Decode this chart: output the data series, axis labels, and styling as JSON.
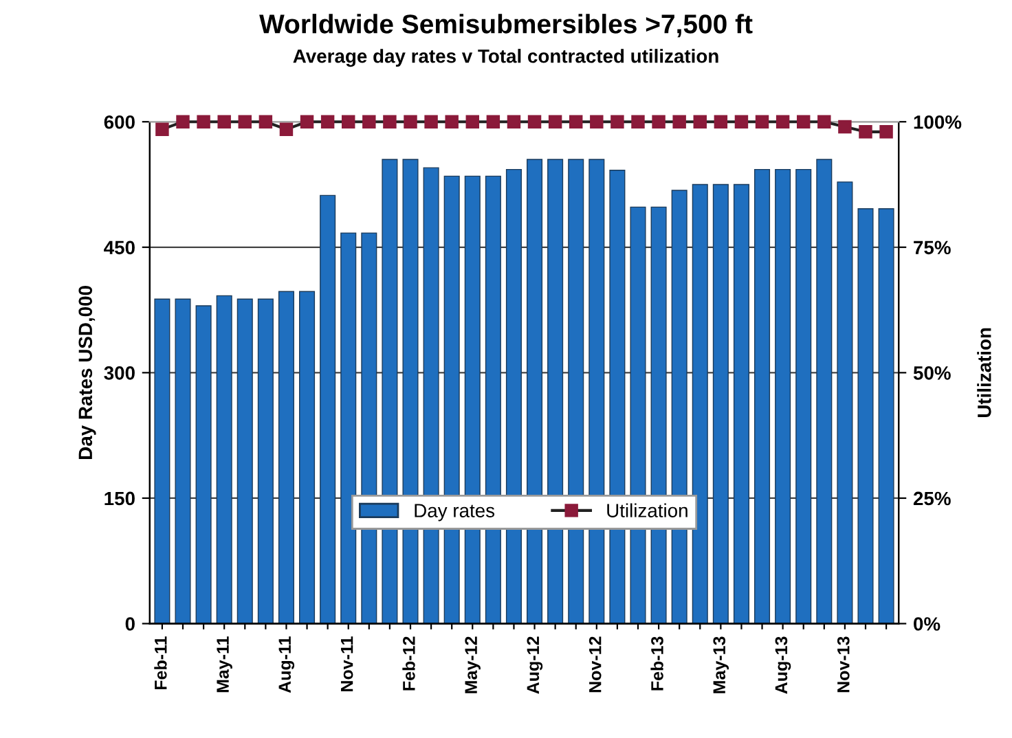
{
  "chart_data": {
    "type": "bar",
    "title": "Worldwide Semisubmersibles >7,500 ft",
    "subtitle": "Average day rates v Total contracted utilization",
    "ylabel": "Day Rates USD,000",
    "y2label": "Utilization",
    "categories": [
      "Feb-11",
      null,
      null,
      "May-11",
      null,
      null,
      "Aug-11",
      null,
      null,
      "Nov-11",
      null,
      null,
      "Feb-12",
      null,
      null,
      "May-12",
      null,
      null,
      "Aug-12",
      null,
      null,
      "Nov-12",
      null,
      null,
      "Feb-13",
      null,
      null,
      "May-13",
      null,
      null,
      "Aug-13",
      null,
      null,
      "Nov-13",
      null,
      null
    ],
    "series": [
      {
        "name": "Day rates",
        "color": "#1f6fbf",
        "values": [
          388,
          388,
          380,
          392,
          388,
          388,
          397,
          397,
          512,
          467,
          467,
          555,
          555,
          545,
          535,
          535,
          535,
          543,
          555,
          555,
          555,
          555,
          542,
          498,
          498,
          518,
          525,
          525,
          525,
          543,
          543,
          543,
          555,
          528,
          496,
          496
        ]
      },
      {
        "name": "Utilization",
        "type": "line",
        "axis": "y2",
        "color": "#8b1a3a",
        "marker": "square",
        "values": [
          98.5,
          100,
          100,
          100,
          100,
          100,
          98.5,
          100,
          100,
          100,
          100,
          100,
          100,
          100,
          100,
          100,
          100,
          100,
          100,
          100,
          100,
          100,
          100,
          100,
          100,
          100,
          100,
          100,
          100,
          100,
          100,
          100,
          100,
          99,
          98,
          98
        ]
      }
    ],
    "ylim": [
      0,
      600
    ],
    "yticks": [
      0,
      150,
      300,
      450,
      600
    ],
    "y2lim": [
      0,
      100
    ],
    "y2ticks": [
      {
        "value": 0,
        "label": "0%"
      },
      {
        "value": 25,
        "label": "25%"
      },
      {
        "value": 50,
        "label": "50%"
      },
      {
        "value": 75,
        "label": "75%"
      },
      {
        "value": 100,
        "label": "100%"
      }
    ],
    "grid": "y",
    "legend": "bottom"
  }
}
